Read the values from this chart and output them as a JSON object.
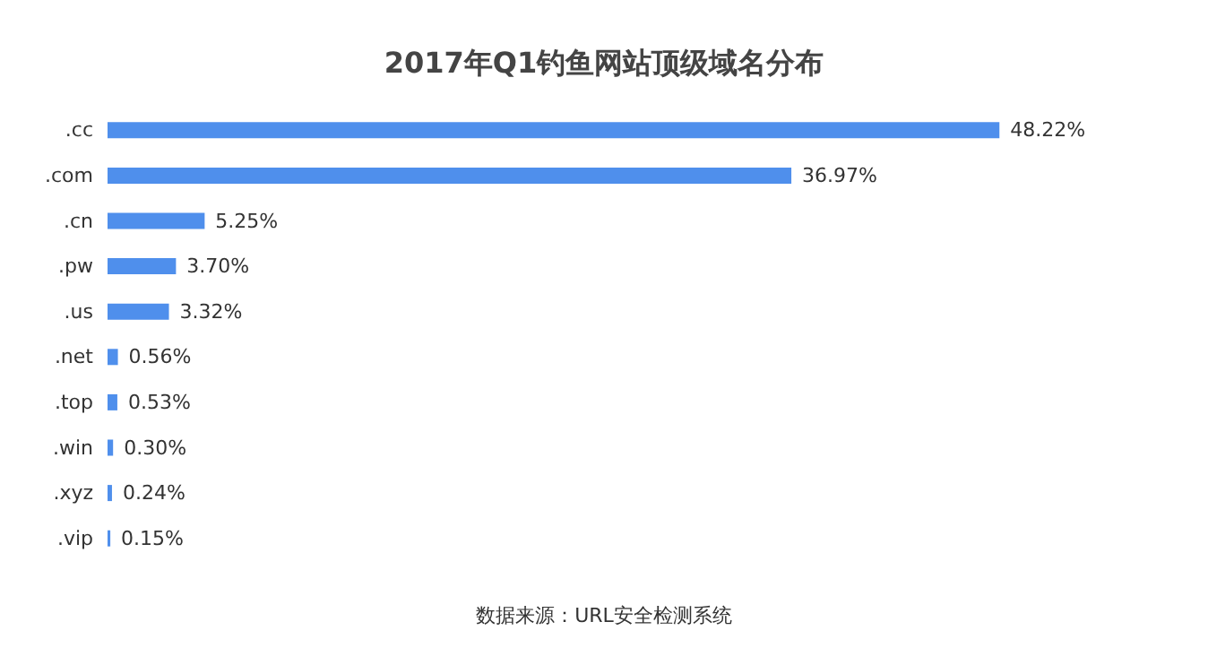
{
  "chart_data": {
    "type": "bar",
    "orientation": "horizontal",
    "title": "2017年Q1钓鱼网站顶级域名分布",
    "categories": [
      ".cc",
      ".com",
      ".cn",
      ".pw",
      ".us",
      ".net",
      ".top",
      ".win",
      ".xyz",
      ".vip"
    ],
    "values": [
      48.22,
      36.97,
      5.25,
      3.7,
      3.32,
      0.56,
      0.53,
      0.3,
      0.24,
      0.15
    ],
    "value_labels": [
      "48.22%",
      "36.97%",
      "5.25%",
      "3.70%",
      "3.32%",
      "0.56%",
      "0.53%",
      "0.30%",
      "0.24%",
      "0.15%"
    ],
    "color": "#4f8fec",
    "annotations": [
      "数据来源：URL安全检测系统"
    ]
  }
}
